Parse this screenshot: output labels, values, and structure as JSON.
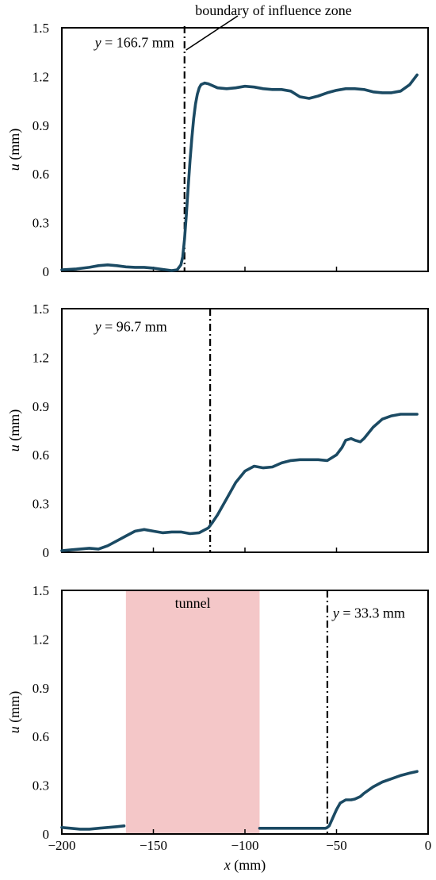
{
  "chart_data": [
    {
      "type": "line",
      "ylabel": "u (mm)",
      "ylabel_var": "u",
      "ylabel_unit": " (mm)",
      "xlim": [
        -200,
        0
      ],
      "ylim": [
        0,
        1.5
      ],
      "yticks": [
        "0",
        "0.3",
        "0.6",
        "0.9",
        "1.2",
        "1.5"
      ],
      "annotation": {
        "var": "y",
        "text": " = 166.7 mm",
        "x": -182,
        "y": 1.41
      },
      "callout": "boundary of influence zone",
      "boundary_x": -133,
      "line_color": "#1b4a63",
      "series": [
        {
          "x": [
            -200,
            -192,
            -185,
            -180,
            -175,
            -170,
            -165,
            -160,
            -155,
            -150,
            -145,
            -140,
            -137,
            -135,
            -134,
            -133,
            -132,
            -131,
            -130,
            -129,
            -128,
            -127,
            -126,
            -125,
            -124,
            -122,
            -120,
            -115,
            -110,
            -105,
            -100,
            -95,
            -90,
            -85,
            -80,
            -75,
            -70,
            -65,
            -60,
            -55,
            -50,
            -45,
            -40,
            -35,
            -30,
            -25,
            -20,
            -15,
            -10,
            -6
          ],
          "y": [
            0.01,
            0.015,
            0.025,
            0.035,
            0.04,
            0.035,
            0.028,
            0.025,
            0.025,
            0.02,
            0.012,
            0.005,
            0.01,
            0.04,
            0.09,
            0.2,
            0.35,
            0.52,
            0.68,
            0.82,
            0.94,
            1.03,
            1.09,
            1.13,
            1.15,
            1.16,
            1.155,
            1.13,
            1.125,
            1.13,
            1.14,
            1.135,
            1.125,
            1.12,
            1.12,
            1.11,
            1.075,
            1.065,
            1.08,
            1.1,
            1.115,
            1.125,
            1.125,
            1.12,
            1.105,
            1.1,
            1.1,
            1.11,
            1.15,
            1.21
          ]
        }
      ]
    },
    {
      "type": "line",
      "ylabel": "u (mm)",
      "ylabel_var": "u",
      "ylabel_unit": " (mm)",
      "xlim": [
        -200,
        0
      ],
      "ylim": [
        0,
        1.5
      ],
      "yticks": [
        "0",
        "0.3",
        "0.6",
        "0.9",
        "1.2",
        "1.5"
      ],
      "annotation": {
        "var": "y",
        "text": " = 96.7 mm",
        "x": -182,
        "y": 1.39
      },
      "boundary_x": -119,
      "line_color": "#1b4a63",
      "series": [
        {
          "x": [
            -200,
            -195,
            -190,
            -185,
            -180,
            -175,
            -170,
            -165,
            -160,
            -155,
            -150,
            -145,
            -140,
            -135,
            -130,
            -125,
            -120,
            -118,
            -115,
            -112,
            -110,
            -105,
            -100,
            -95,
            -90,
            -85,
            -80,
            -75,
            -70,
            -65,
            -60,
            -55,
            -50,
            -47,
            -45,
            -42,
            -40,
            -37,
            -35,
            -30,
            -25,
            -20,
            -15,
            -10,
            -6
          ],
          "y": [
            0.01,
            0.015,
            0.02,
            0.025,
            0.02,
            0.04,
            0.07,
            0.1,
            0.13,
            0.14,
            0.13,
            0.12,
            0.125,
            0.125,
            0.115,
            0.12,
            0.15,
            0.18,
            0.23,
            0.29,
            0.33,
            0.43,
            0.5,
            0.53,
            0.52,
            0.525,
            0.55,
            0.565,
            0.57,
            0.57,
            0.57,
            0.565,
            0.6,
            0.645,
            0.69,
            0.7,
            0.69,
            0.68,
            0.7,
            0.77,
            0.82,
            0.84,
            0.85,
            0.85,
            0.85
          ]
        }
      ]
    },
    {
      "type": "line",
      "xlabel": "x (mm)",
      "xlabel_var": "x",
      "xlabel_unit": " (mm)",
      "ylabel": "u (mm)",
      "ylabel_var": "u",
      "ylabel_unit": " (mm)",
      "xlim": [
        -200,
        0
      ],
      "ylim": [
        0,
        1.5
      ],
      "xticks": [
        "−200",
        "−150",
        "−100",
        "−50",
        "0"
      ],
      "yticks": [
        "0",
        "0.3",
        "0.6",
        "0.9",
        "1.2",
        "1.5"
      ],
      "annotation": {
        "var": "y",
        "text": " = 33.3 mm",
        "x": -52,
        "y": 1.36
      },
      "boundary_x": -55,
      "tunnel": {
        "label": "tunnel",
        "x_start": -165,
        "x_end": -92,
        "color": "#f4c7c8"
      },
      "line_color": "#1b4a63",
      "series": [
        {
          "x": [
            -200,
            -195,
            -190,
            -185,
            -180,
            -175,
            -170,
            -166
          ],
          "y": [
            0.04,
            0.035,
            0.03,
            0.03,
            0.035,
            0.04,
            0.045,
            0.05
          ]
        },
        {
          "x": [
            -92,
            -85,
            -80,
            -75,
            -70,
            -65,
            -60,
            -56,
            -55,
            -54,
            -52,
            -50,
            -48,
            -45,
            -42,
            -40,
            -37,
            -35,
            -30,
            -25,
            -20,
            -15,
            -10,
            -6
          ],
          "y": [
            0.035,
            0.035,
            0.035,
            0.035,
            0.035,
            0.035,
            0.035,
            0.035,
            0.04,
            0.05,
            0.1,
            0.15,
            0.19,
            0.21,
            0.21,
            0.215,
            0.23,
            0.25,
            0.29,
            0.32,
            0.34,
            0.36,
            0.375,
            0.385
          ]
        }
      ]
    }
  ]
}
